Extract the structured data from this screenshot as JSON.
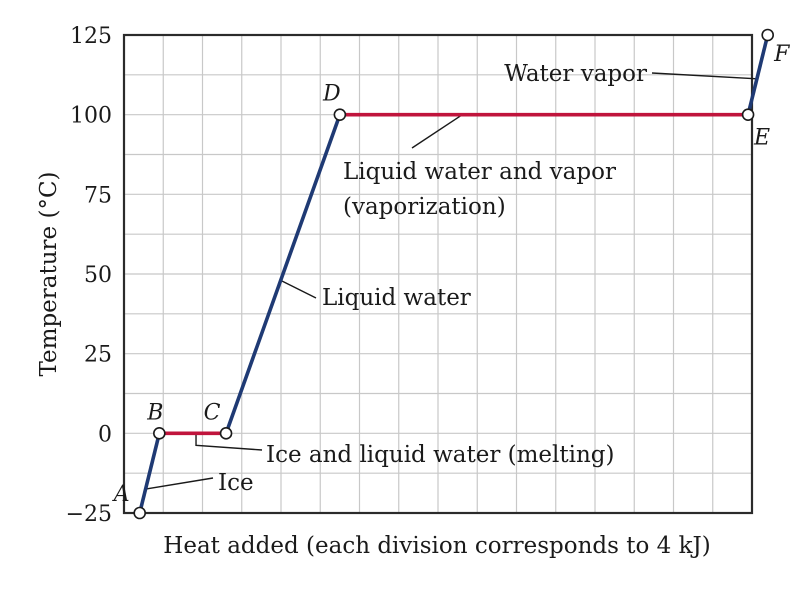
{
  "chart_data": {
    "type": "line",
    "title": "",
    "xlabel": "Heat added (each division corresponds to 4 kJ)",
    "ylabel": "Temperature (°C)",
    "xlim": [
      0,
      16
    ],
    "ylim": [
      -25,
      125
    ],
    "x_divisions": 16,
    "grid": true,
    "yticks": [
      -25,
      0,
      25,
      50,
      75,
      100,
      125
    ],
    "ytick_labels": [
      "−25",
      "0",
      "25",
      "50",
      "75",
      "100",
      "125"
    ],
    "points": [
      {
        "label": "A",
        "x": 0.4,
        "y": -25
      },
      {
        "label": "B",
        "x": 0.9,
        "y": 0
      },
      {
        "label": "C",
        "x": 2.6,
        "y": 0
      },
      {
        "label": "D",
        "x": 5.5,
        "y": 100
      },
      {
        "label": "E",
        "x": 15.9,
        "y": 100
      },
      {
        "label": "F",
        "x": 16.4,
        "y": 125
      }
    ],
    "segments": [
      {
        "from": "A",
        "to": "B",
        "phase": "heating",
        "color": "#1f3a74",
        "annotation": [
          "Ice"
        ]
      },
      {
        "from": "B",
        "to": "C",
        "phase": "transition",
        "color": "#c0143c",
        "annotation": [
          "Ice and liquid water (melting)"
        ]
      },
      {
        "from": "C",
        "to": "D",
        "phase": "heating",
        "color": "#1f3a74",
        "annotation": [
          "Liquid water"
        ]
      },
      {
        "from": "D",
        "to": "E",
        "phase": "transition",
        "color": "#c0143c",
        "annotation": [
          "Liquid water and vapor",
          "(vaporization)"
        ]
      },
      {
        "from": "E",
        "to": "F",
        "phase": "heating",
        "color": "#1f3a74",
        "annotation": [
          "Water vapor"
        ]
      }
    ]
  }
}
